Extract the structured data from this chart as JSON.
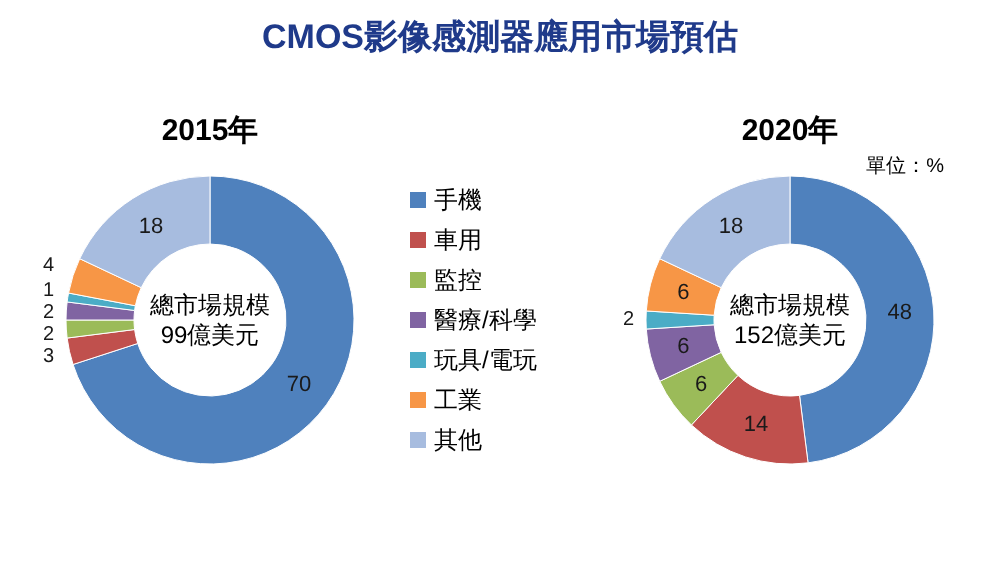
{
  "chart_data": [
    {
      "type": "donut",
      "title": "CMOS影像感測器應用市場預估",
      "subtitle": "2015年",
      "categories": [
        "手機",
        "車用",
        "監控",
        "醫療/科學",
        "玩具/電玩",
        "工業",
        "其他"
      ],
      "values": [
        70,
        3,
        2,
        2,
        1,
        4,
        18
      ],
      "colors": [
        "#4f81bd",
        "#c0504d",
        "#9bbb59",
        "#8064a2",
        "#4bacc6",
        "#f79646",
        "#a7bcdf"
      ],
      "data_labels": true,
      "legend": "right",
      "annotations": [
        "總市場規模\n99億美元"
      ]
    },
    {
      "type": "donut",
      "title": "2020年",
      "categories": [
        null,
        null,
        null,
        null,
        null,
        null,
        null
      ],
      "values": [
        48,
        14,
        6,
        6,
        2,
        6,
        18
      ],
      "colors": [
        "#4f81bd",
        "#c0504d",
        "#9bbb59",
        "#8064a2",
        "#4bacc6",
        "#f79646",
        "#a7bcdf"
      ],
      "data_labels": true,
      "annotations": [
        "總市場規模\n152億美元",
        "單位：%"
      ]
    }
  ]
}
